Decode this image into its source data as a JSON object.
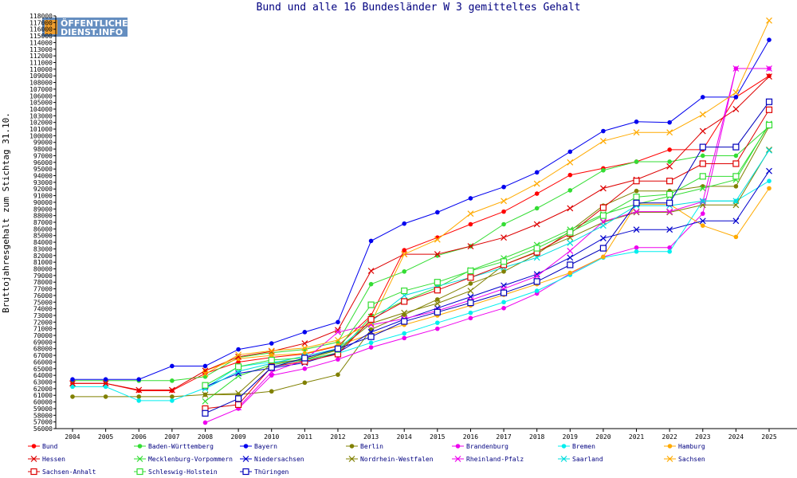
{
  "watermark": {
    "line1": "ÖFFENTLICHER",
    "line2": "DIENST.INFO"
  },
  "chart_data": {
    "type": "line",
    "title": "Bund und alle 16 Bundesländer W 3 gemitteltes Gehalt",
    "xlabel": "",
    "ylabel": "Bruttojahresgehalt zum Stichtag 31.10.",
    "x": [
      2004,
      2005,
      2006,
      2007,
      2008,
      2009,
      2010,
      2011,
      2012,
      2013,
      2014,
      2015,
      2016,
      2017,
      2018,
      2019,
      2020,
      2021,
      2022,
      2023,
      2024,
      2025
    ],
    "ylim": [
      56000,
      118000
    ],
    "ytick_step": 1000,
    "grid": false,
    "legend_position": "bottom",
    "series": [
      {
        "name": "Bund",
        "color": "#ff0000",
        "marker": "dot",
        "values": [
          62800,
          62800,
          61700,
          61700,
          64300,
          66000,
          66700,
          67200,
          68400,
          73000,
          82800,
          84700,
          86700,
          88600,
          91300,
          94100,
          95100,
          96100,
          97900,
          97900,
          105800,
          109000
        ]
      },
      {
        "name": "Baden-Württemberg",
        "color": "#33dd33",
        "marker": "dot",
        "values": [
          63200,
          63200,
          63200,
          63200,
          63800,
          66700,
          67400,
          67900,
          69000,
          77700,
          79600,
          82000,
          83400,
          86700,
          89100,
          91800,
          94800,
          96100,
          96100,
          97000,
          97000,
          101400
        ]
      },
      {
        "name": "Bayern",
        "color": "#0000ee",
        "marker": "dot",
        "values": [
          63400,
          63400,
          63400,
          65400,
          65400,
          67900,
          68800,
          70500,
          72000,
          84200,
          86800,
          88500,
          90600,
          92300,
          94500,
          97600,
          100700,
          102100,
          102000,
          105800,
          105800,
          114400
        ]
      },
      {
        "name": "Berlin",
        "color": "#808000",
        "marker": "dot",
        "values": [
          60800,
          60800,
          60800,
          60800,
          61100,
          61100,
          61600,
          62900,
          64100,
          70900,
          73100,
          75400,
          77800,
          79600,
          82200,
          85700,
          89500,
          91700,
          91700,
          92400,
          92400,
          101400
        ]
      },
      {
        "name": "Brandenburg",
        "color": "#ee00ee",
        "marker": "dot",
        "values": [
          null,
          null,
          null,
          null,
          56900,
          59000,
          64000,
          65000,
          66400,
          68200,
          69600,
          71000,
          72600,
          74100,
          76300,
          79300,
          81800,
          83200,
          83200,
          88300,
          110100,
          110100
        ]
      },
      {
        "name": "Bremen",
        "color": "#00eeee",
        "marker": "dot",
        "values": [
          62300,
          62300,
          60200,
          60200,
          62100,
          65300,
          66000,
          66300,
          67300,
          68900,
          70300,
          71900,
          73400,
          75000,
          76700,
          79100,
          81700,
          82600,
          82600,
          90200,
          90200,
          93200
        ]
      },
      {
        "name": "Hamburg",
        "color": "#ffaa00",
        "marker": "dot",
        "values": [
          null,
          null,
          null,
          null,
          64700,
          66500,
          67000,
          67300,
          68500,
          70200,
          71600,
          73000,
          74500,
          76100,
          77700,
          79400,
          81800,
          89700,
          89700,
          86500,
          84800,
          92100
        ]
      },
      {
        "name": "Hessen",
        "color": "#dd0000",
        "marker": "x",
        "values": [
          62800,
          62800,
          61800,
          61800,
          64700,
          66800,
          67600,
          68800,
          70800,
          79700,
          82200,
          82200,
          83400,
          84700,
          86700,
          89100,
          92100,
          93400,
          95400,
          100700,
          104000,
          108900
        ]
      },
      {
        "name": "Mecklenburg-Vorpommern",
        "color": "#33dd33",
        "marker": "x",
        "values": [
          null,
          null,
          null,
          null,
          60100,
          63900,
          65600,
          66300,
          67400,
          72800,
          75200,
          77200,
          79800,
          81600,
          83600,
          85900,
          88200,
          89700,
          90900,
          92100,
          93400,
          101800
        ]
      },
      {
        "name": "Niedersachsen",
        "color": "#0000cc",
        "marker": "x",
        "values": [
          null,
          null,
          null,
          null,
          62300,
          64300,
          65100,
          65900,
          67400,
          70500,
          72400,
          74100,
          75800,
          77500,
          79200,
          81700,
          84600,
          85900,
          85900,
          87200,
          87200,
          94700
        ]
      },
      {
        "name": "Nordrhein-Westfalen",
        "color": "#808000",
        "marker": "x",
        "values": [
          null,
          null,
          null,
          null,
          61100,
          61300,
          65800,
          66400,
          67800,
          71800,
          73400,
          74800,
          76700,
          80600,
          82600,
          84700,
          87000,
          88500,
          88500,
          89600,
          89600,
          97900
        ]
      },
      {
        "name": "Rheinland-Pfalz",
        "color": "#ee00ee",
        "marker": "x",
        "values": [
          null,
          null,
          null,
          null,
          null,
          59200,
          64500,
          66300,
          70500,
          71600,
          72500,
          73700,
          75300,
          77000,
          78900,
          82700,
          87100,
          88600,
          88600,
          90100,
          110100,
          110100
        ]
      },
      {
        "name": "Saarland",
        "color": "#00dddd",
        "marker": "x",
        "values": [
          null,
          null,
          null,
          null,
          62000,
          64600,
          65800,
          66900,
          68000,
          72100,
          76000,
          77400,
          78700,
          80200,
          81700,
          83900,
          86500,
          89500,
          89500,
          90200,
          90200,
          97800
        ]
      },
      {
        "name": "Sachsen",
        "color": "#ffaa00",
        "marker": "x",
        "values": [
          null,
          null,
          null,
          null,
          64200,
          67100,
          67700,
          68100,
          69300,
          71900,
          82200,
          84400,
          88300,
          90200,
          92800,
          96000,
          99200,
          100500,
          100500,
          103200,
          106500,
          117300
        ]
      },
      {
        "name": "Sachsen-Anhalt",
        "color": "#dd0000",
        "marker": "square",
        "values": [
          null,
          null,
          null,
          null,
          59000,
          59600,
          65300,
          66100,
          67200,
          72400,
          75100,
          76800,
          78700,
          80600,
          82500,
          85300,
          89200,
          93200,
          93200,
          95800,
          95800,
          103900
        ]
      },
      {
        "name": "Schleswig-Holstein",
        "color": "#33dd33",
        "marker": "square",
        "values": [
          null,
          null,
          null,
          null,
          62500,
          65300,
          66300,
          66600,
          67900,
          74600,
          76700,
          78000,
          79700,
          81100,
          83100,
          85500,
          88000,
          90800,
          91200,
          93900,
          93900,
          101600
        ]
      },
      {
        "name": "Thüringen",
        "color": "#0000bb",
        "marker": "square",
        "values": [
          null,
          null,
          null,
          null,
          58300,
          60500,
          65200,
          66600,
          68000,
          69800,
          72100,
          73500,
          74900,
          76400,
          78100,
          80600,
          83100,
          89900,
          89900,
          98300,
          98300,
          105100
        ]
      }
    ]
  }
}
